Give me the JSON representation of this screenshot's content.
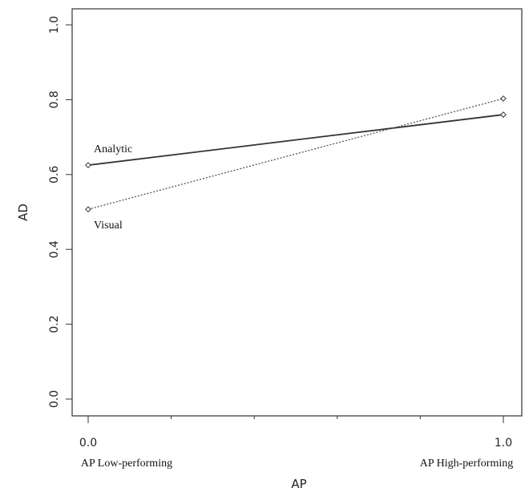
{
  "chart_data": {
    "type": "line",
    "xlabel": "AP",
    "ylabel": "AD",
    "xlim": [
      0,
      1
    ],
    "ylim": [
      0,
      1
    ],
    "x": [
      0,
      1
    ],
    "x_tick_labels": [
      "0.0",
      "1.0"
    ],
    "x_category_labels": [
      "AP Low-performing",
      "AP High-performing"
    ],
    "y_ticks": [
      0.0,
      0.2,
      0.4,
      0.6,
      0.8,
      1.0
    ],
    "y_tick_labels": [
      "0.0",
      "0.2",
      "0.4",
      "0.6",
      "0.8",
      "1.0"
    ],
    "grid": false,
    "legend": "none",
    "series": [
      {
        "name": "Analytic",
        "values": [
          0.625,
          0.76
        ],
        "line_style": "solid",
        "color": "#333333"
      },
      {
        "name": "Visual",
        "values": [
          0.507,
          0.803
        ],
        "line_style": "dotted",
        "color": "#555555"
      }
    ]
  }
}
